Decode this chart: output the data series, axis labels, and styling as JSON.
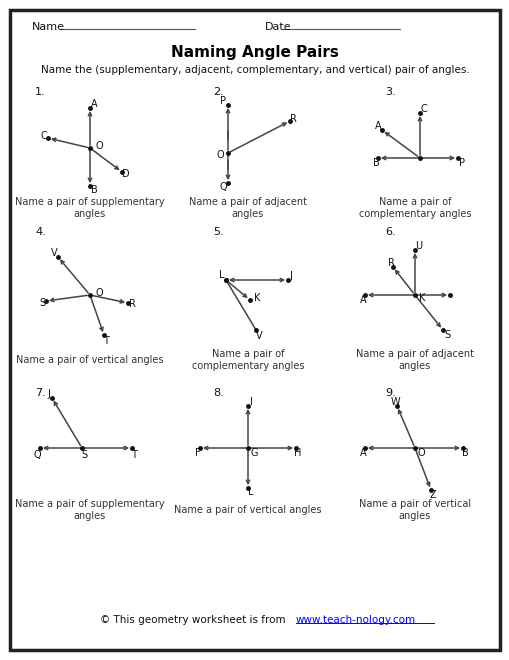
{
  "title": "Naming Angle Pairs",
  "subtitle": "Name the (supplementary, adjacent, complementary, and vertical) pair of angles.",
  "footer_text": "© This geometry worksheet is from ",
  "footer_url": "www.teach-nology.com",
  "captions": [
    "Name a pair of supplementary\nangles",
    "Name a pair of adjacent\nangles",
    "Name a pair of\ncomplementary angles",
    "Name a pair of vertical angles",
    "Name a pair of\ncomplementary angles",
    "Name a pair of adjacent\nangles",
    "Name a pair of supplementary\nangles",
    "Name a pair of vertical angles",
    "Name a pair of vertical\nangles"
  ],
  "background": "#ffffff",
  "border_color": "#222222",
  "text_color": "#000000",
  "caption_color": "#333333",
  "line_color": "#444444",
  "dot_color": "#111111"
}
